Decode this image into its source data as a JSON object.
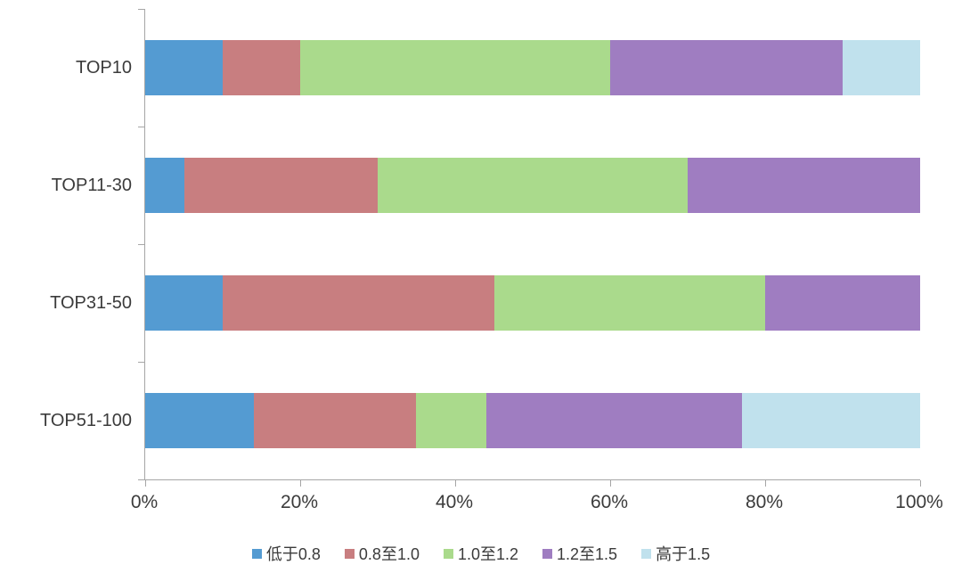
{
  "chart_data": {
    "type": "bar",
    "orientation": "horizontal",
    "stacked": true,
    "title": "",
    "xlabel": "",
    "ylabel": "",
    "categories": [
      "TOP10",
      "TOP11-30",
      "TOP31-50",
      "TOP51-100"
    ],
    "series": [
      {
        "name": "低于0.8",
        "color": "#549BD2",
        "values": [
          10,
          5,
          10,
          14
        ]
      },
      {
        "name": "0.8至1.0",
        "color": "#C87E80",
        "values": [
          10,
          25,
          35,
          21
        ]
      },
      {
        "name": "1.0至1.2",
        "color": "#AADA8C",
        "values": [
          40,
          40,
          35,
          9
        ]
      },
      {
        "name": "1.2至1.5",
        "color": "#9F7DC1",
        "values": [
          30,
          30,
          20,
          33
        ]
      },
      {
        "name": "高于1.5",
        "color": "#C0E1ED",
        "values": [
          10,
          0,
          0,
          23
        ]
      }
    ],
    "x_axis": {
      "min": 0,
      "max": 100,
      "tick_labels": [
        "0%",
        "20%",
        "40%",
        "60%",
        "80%",
        "100%"
      ],
      "unit": "percent"
    },
    "legend_position": "bottom",
    "grid": false,
    "colors": {
      "axis": "#A6A6A6",
      "text": "#3B3B3B",
      "background": "#FFFFFF"
    }
  }
}
